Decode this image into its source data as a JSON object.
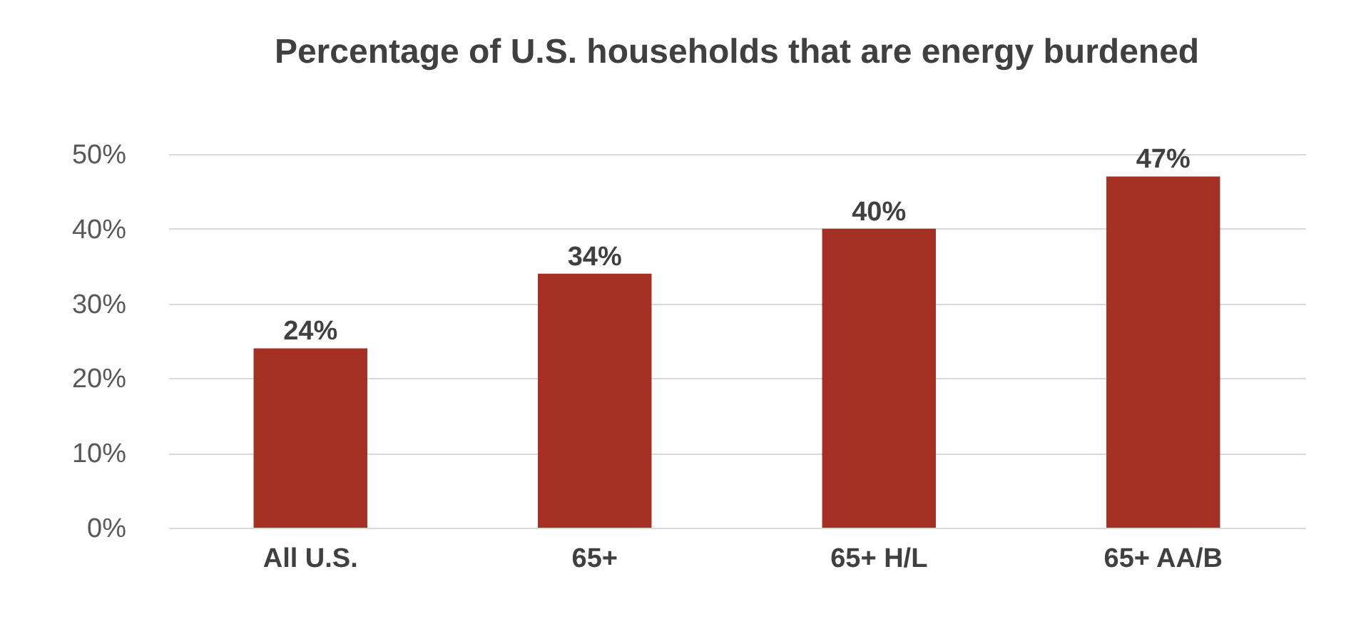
{
  "chart_data": {
    "type": "bar",
    "title": "Percentage of U.S. households that are energy burdened",
    "categories": [
      "All U.S.",
      "65+",
      "65+ H/L",
      "65+ AA/B"
    ],
    "values": [
      24,
      34,
      40,
      47
    ],
    "color": "#a33022",
    "ylim": [
      0,
      50
    ],
    "yticks": [
      {
        "value": 0,
        "label": "0%"
      },
      {
        "value": 10,
        "label": "10%"
      },
      {
        "value": 20,
        "label": "20%"
      },
      {
        "value": 30,
        "label": "30%"
      },
      {
        "value": 40,
        "label": "40%"
      },
      {
        "value": 50,
        "label": "50%"
      }
    ],
    "value_labels": [
      "24%",
      "34%",
      "40%",
      "47%"
    ],
    "grid": "y"
  }
}
